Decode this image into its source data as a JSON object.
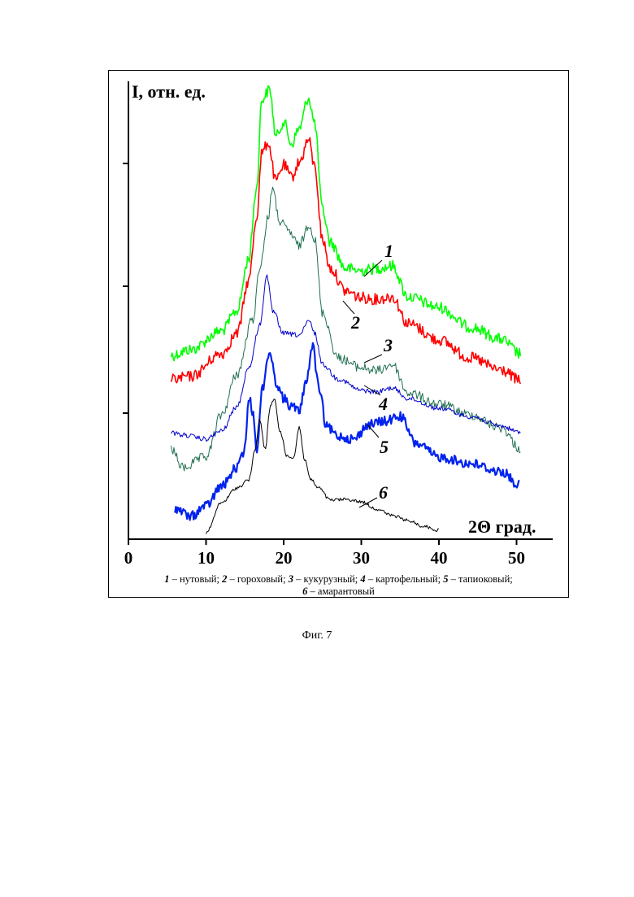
{
  "chart_data": {
    "type": "line",
    "ylabel": "I, отн. ед.",
    "xlabel": "2Θ град.",
    "xlim": [
      0,
      55
    ],
    "xticks": [
      0,
      10,
      20,
      30,
      40,
      50
    ],
    "grid": false,
    "series": [
      {
        "label": "1",
        "color": "#00ff00",
        "stroke_width": 1.6,
        "xrange": [
          5.5,
          50.5
        ],
        "peaks": [
          [
            5.5,
            437
          ],
          [
            8,
            430
          ],
          [
            12,
            407
          ],
          [
            14,
            382
          ],
          [
            15.5,
            318
          ],
          [
            16.5,
            232
          ],
          [
            17.2,
            122
          ],
          [
            18.2,
            110
          ],
          [
            19,
            168
          ],
          [
            20,
            150
          ],
          [
            21,
            177
          ],
          [
            22,
            158
          ],
          [
            23.2,
            120
          ],
          [
            24,
            152
          ],
          [
            25,
            258
          ],
          [
            26,
            298
          ],
          [
            28,
            330
          ],
          [
            30,
            333
          ],
          [
            32,
            330
          ],
          [
            34,
            327
          ],
          [
            36,
            365
          ],
          [
            40,
            378
          ],
          [
            44,
            402
          ],
          [
            48,
            417
          ],
          [
            50.5,
            435
          ]
        ]
      },
      {
        "label": "2",
        "color": "#ff0000",
        "stroke_width": 1.6,
        "xrange": [
          5.5,
          50.5
        ],
        "peaks": [
          [
            5.5,
            467
          ],
          [
            8,
            463
          ],
          [
            12,
            435
          ],
          [
            14,
            410
          ],
          [
            15.5,
            345
          ],
          [
            16.5,
            268
          ],
          [
            17.2,
            188
          ],
          [
            18,
            175
          ],
          [
            19,
            223
          ],
          [
            20,
            203
          ],
          [
            21,
            218
          ],
          [
            22,
            200
          ],
          [
            23.2,
            172
          ],
          [
            24,
            205
          ],
          [
            25,
            295
          ],
          [
            26,
            330
          ],
          [
            28,
            358
          ],
          [
            30,
            366
          ],
          [
            32,
            368
          ],
          [
            34,
            365
          ],
          [
            36,
            398
          ],
          [
            40,
            418
          ],
          [
            44,
            440
          ],
          [
            48,
            455
          ],
          [
            50.5,
            468
          ]
        ]
      },
      {
        "label": "3",
        "color": "#1f6f4f",
        "stroke_width": 1.0,
        "xrange": [
          5.5,
          50.5
        ],
        "peaks": [
          [
            5.5,
            552
          ],
          [
            7,
            575
          ],
          [
            10,
            562
          ],
          [
            12,
            510
          ],
          [
            14,
            460
          ],
          [
            16,
            393
          ],
          [
            17,
            325
          ],
          [
            18,
            268
          ],
          [
            18.5,
            232
          ],
          [
            19.5,
            272
          ],
          [
            20.5,
            283
          ],
          [
            22,
            302
          ],
          [
            23.3,
            275
          ],
          [
            24,
            295
          ],
          [
            25,
            385
          ],
          [
            27,
            440
          ],
          [
            30,
            452
          ],
          [
            32,
            456
          ],
          [
            34,
            448
          ],
          [
            36,
            483
          ],
          [
            40,
            497
          ],
          [
            44,
            510
          ],
          [
            48,
            526
          ],
          [
            50.5,
            552
          ]
        ]
      },
      {
        "label": "4",
        "color": "#0000cc",
        "stroke_width": 1.0,
        "xrange": [
          5.5,
          50.5
        ],
        "peaks": [
          [
            5.5,
            532
          ],
          [
            7,
            535
          ],
          [
            10,
            540
          ],
          [
            12,
            530
          ],
          [
            14,
            500
          ],
          [
            15.5,
            452
          ],
          [
            17,
            398
          ],
          [
            17.8,
            338
          ],
          [
            18.6,
            383
          ],
          [
            20,
            410
          ],
          [
            22,
            412
          ],
          [
            23.3,
            395
          ],
          [
            24,
            410
          ],
          [
            25,
            448
          ],
          [
            27,
            466
          ],
          [
            30,
            480
          ],
          [
            32,
            482
          ],
          [
            34,
            477
          ],
          [
            36,
            490
          ],
          [
            40,
            502
          ],
          [
            44,
            512
          ],
          [
            48,
            524
          ],
          [
            50.5,
            532
          ]
        ]
      },
      {
        "label": "5",
        "color": "#0022ee",
        "stroke_width": 2.2,
        "xrange": [
          6,
          50.5
        ],
        "peaks": [
          [
            6,
            625
          ],
          [
            8,
            635
          ],
          [
            10,
            622
          ],
          [
            12,
            598
          ],
          [
            14,
            575
          ],
          [
            15,
            553
          ],
          [
            15.5,
            488
          ],
          [
            16,
            505
          ],
          [
            16.6,
            555
          ],
          [
            17.2,
            478
          ],
          [
            18.2,
            432
          ],
          [
            19,
            470
          ],
          [
            20,
            490
          ],
          [
            21,
            500
          ],
          [
            22,
            505
          ],
          [
            23,
            465
          ],
          [
            23.7,
            425
          ],
          [
            24.6,
            480
          ],
          [
            25.5,
            525
          ],
          [
            27,
            536
          ],
          [
            29,
            540
          ],
          [
            31,
            522
          ],
          [
            33,
            518
          ],
          [
            35,
            512
          ],
          [
            37,
            545
          ],
          [
            40,
            562
          ],
          [
            44,
            570
          ],
          [
            48,
            580
          ],
          [
            50.5,
            597
          ]
        ]
      },
      {
        "label": "6",
        "color": "#000000",
        "stroke_width": 1.0,
        "xrange": [
          10,
          40
        ],
        "peaks": [
          [
            10,
            655
          ],
          [
            12,
            618
          ],
          [
            14,
            600
          ],
          [
            15.5,
            590
          ],
          [
            16.3,
            555
          ],
          [
            16.9,
            516
          ],
          [
            17.6,
            552
          ],
          [
            18.3,
            500
          ],
          [
            18.8,
            490
          ],
          [
            19.5,
            530
          ],
          [
            20.5,
            562
          ],
          [
            21.3,
            562
          ],
          [
            22,
            525
          ],
          [
            22.7,
            565
          ],
          [
            23.5,
            590
          ],
          [
            24.5,
            600
          ],
          [
            26,
            615
          ],
          [
            28,
            614
          ],
          [
            30,
            617
          ],
          [
            32,
            626
          ],
          [
            34,
            634
          ],
          [
            36,
            640
          ],
          [
            38,
            647
          ],
          [
            40,
            652
          ]
        ]
      }
    ],
    "curve_labels": [
      "1",
      "2",
      "3",
      "4",
      "5",
      "6"
    ]
  },
  "legend": {
    "line1": [
      {
        "num": "1",
        "text": " – нутовый; "
      },
      {
        "num": "2",
        "text": " – гороховый; "
      },
      {
        "num": "3",
        "text": " – кукурузный; "
      },
      {
        "num": "4",
        "text": " – картофельный; "
      },
      {
        "num": "5",
        "text": " – тапиоковый;"
      }
    ],
    "line2": [
      {
        "num": "6",
        "text": " – амарантовый"
      }
    ]
  },
  "caption": "Фиг. 7"
}
